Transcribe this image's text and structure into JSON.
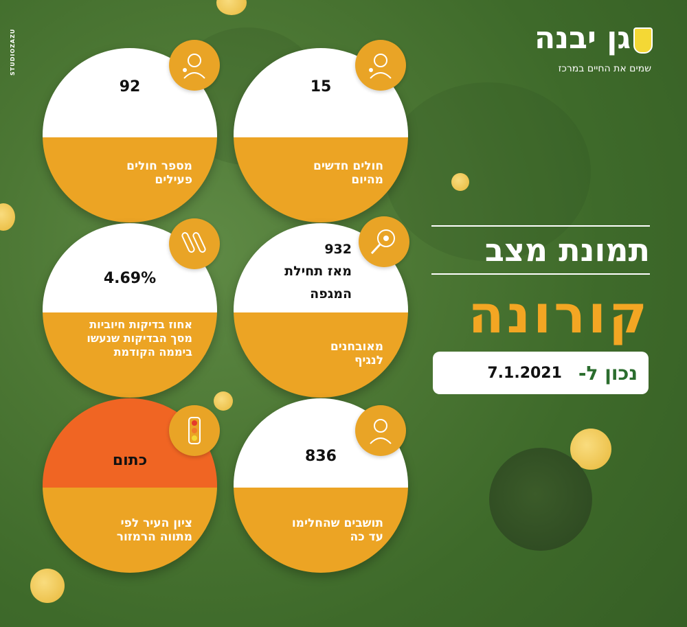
{
  "watermark": "STUDIOZAZU",
  "logo": {
    "title": "גן יבנה",
    "tagline": "שמים את החיים במרכז",
    "badge_icon": "shield-crest-icon"
  },
  "headline": {
    "line1": "תמונת מצב",
    "line2": "קורונה"
  },
  "date": {
    "prefix": "נכון ל-",
    "value": "7.1.2021"
  },
  "stats": [
    {
      "value": "15",
      "label1": "חולים חדשים",
      "label2": "מהיום",
      "icon": "person-virus-icon"
    },
    {
      "value": "92",
      "label1": "מספר חולים",
      "label2": "פעילים",
      "icon": "person-virus-icon"
    },
    {
      "value": "932",
      "value_line2": "מאז תחילת",
      "value_line3": "המגפה",
      "label1": "מאובחנים",
      "label2": "לנגיף",
      "icon": "magnifier-virus-icon"
    },
    {
      "value": "4.69%",
      "label1": "אחוז בדיקות חיוביות",
      "label2": "מסך הבדיקות שנעשו",
      "label3": "ביממה הקודמת",
      "icon": "test-tubes-icon"
    },
    {
      "value": "836",
      "label1": "תושבים שהחלימו",
      "label2": "עד כה",
      "icon": "person-icon"
    },
    {
      "value": "כתום",
      "label1": "ציון העיר לפי",
      "label2": "מתווה הרמזור",
      "icon": "traffic-light-icon"
    }
  ],
  "colors": {
    "background": "#4c7734",
    "accent_orange": "#eca424",
    "status_orange": "#f06523",
    "brand_green": "#2b6d2e"
  }
}
